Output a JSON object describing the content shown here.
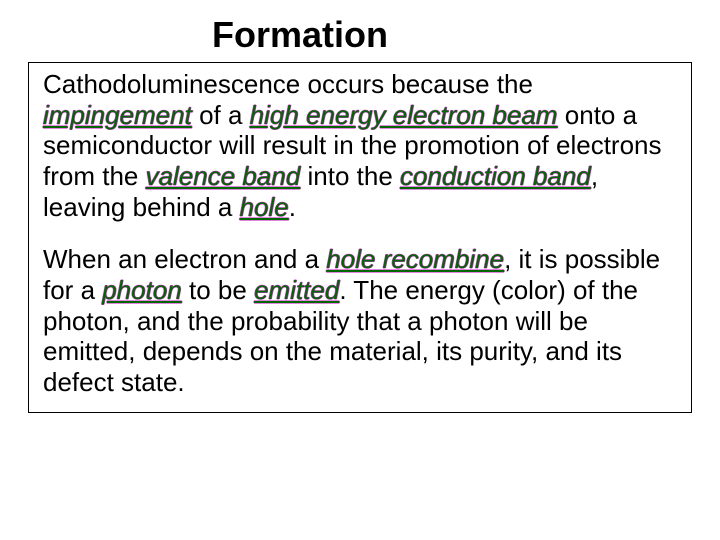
{
  "title": "Formation",
  "colors": {
    "background": "#ffffff",
    "text": "#000000",
    "keyword_fill": "#006600",
    "keyword_outline": "#cc33cc",
    "box_border": "#000000"
  },
  "typography": {
    "title_fontsize_pt": 27,
    "body_fontsize_pt": 20,
    "font_family": "Arial",
    "title_weight": "bold",
    "keyword_style": "italic underline"
  },
  "paragraphs": [
    {
      "runs": [
        {
          "t": "Cathodoluminescence occurs because the ",
          "key": false
        },
        {
          "t": "impingement",
          "key": true
        },
        {
          "t": " of a ",
          "key": false
        },
        {
          "t": "high energy electron beam",
          "key": true
        },
        {
          "t": " onto a semiconductor will result in the promotion of electrons from the ",
          "key": false
        },
        {
          "t": "valence band",
          "key": true
        },
        {
          "t": " into the ",
          "key": false
        },
        {
          "t": "conduction band",
          "key": true
        },
        {
          "t": ", leaving behind a ",
          "key": false
        },
        {
          "t": "hole",
          "key": true
        },
        {
          "t": ".",
          "key": false
        }
      ]
    },
    {
      "runs": [
        {
          "t": "When an electron and a ",
          "key": false
        },
        {
          "t": "hole recombine",
          "key": true
        },
        {
          "t": ", it is possible for a ",
          "key": false
        },
        {
          "t": "photon",
          "key": true
        },
        {
          "t": " to be ",
          "key": false
        },
        {
          "t": "emitted",
          "key": true
        },
        {
          "t": ". The energy (color) of the photon, and the probability that a photon will be emitted, depends on the material, its purity, and its defect state.",
          "key": false
        }
      ]
    }
  ]
}
